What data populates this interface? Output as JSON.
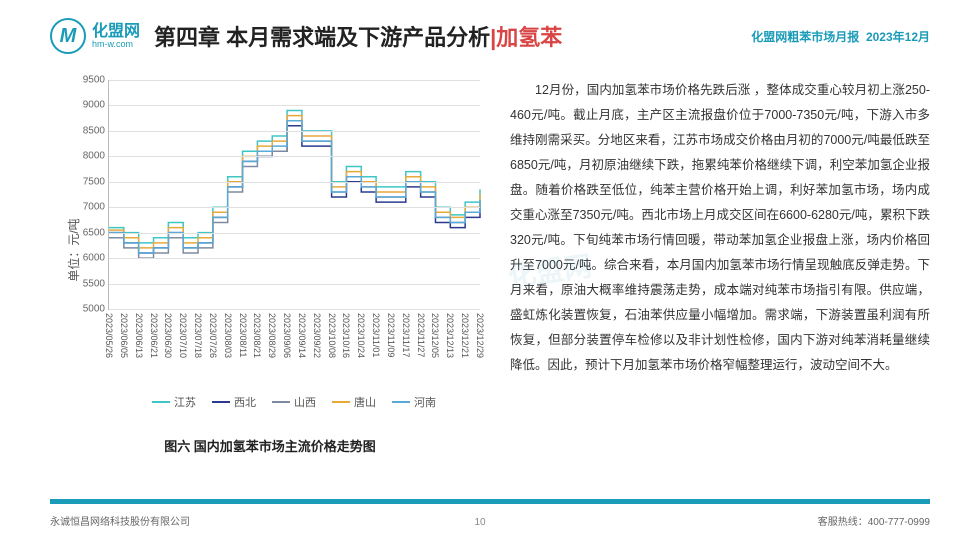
{
  "header": {
    "logo_letter": "M",
    "logo_cn": "化盟网",
    "logo_en": "hm-w.com",
    "title_pre": "第四章 本月需求端及下游产品分析",
    "title_hl": "|加氢苯",
    "top_right_a": "化盟网粗苯市场月报",
    "top_right_b": "2023年12月"
  },
  "chart": {
    "caption": "图六 国内加氢苯市场主流价格走势图",
    "yaxis_label": "单位：元/吨",
    "ymin": 5000,
    "ymax": 9500,
    "ytick_step": 500,
    "yticks": [
      5000,
      5500,
      6000,
      6500,
      7000,
      7500,
      8000,
      8500,
      9000,
      9500
    ],
    "xlabels": [
      "2023/05/26",
      "2023/06/05",
      "2023/06/13",
      "2023/06/21",
      "2023/06/30",
      "2023/07/10",
      "2023/07/18",
      "2023/07/26",
      "2023/08/03",
      "2023/08/11",
      "2023/08/21",
      "2023/08/29",
      "2023/09/06",
      "2023/09/14",
      "2023/09/22",
      "2023/10/08",
      "2023/10/16",
      "2023/10/24",
      "2023/11/01",
      "2023/11/09",
      "2023/11/17",
      "2023/11/27",
      "2023/12/05",
      "2023/12/13",
      "2023/12/21",
      "2023/12/29"
    ],
    "series": [
      {
        "name": "江苏",
        "color": "#3ec6c6",
        "values": [
          6600,
          6500,
          6300,
          6400,
          6700,
          6400,
          6500,
          7000,
          7600,
          8100,
          8300,
          8400,
          8900,
          8500,
          8500,
          7500,
          7800,
          7600,
          7400,
          7400,
          7700,
          7500,
          7000,
          6850,
          7100,
          7350
        ]
      },
      {
        "name": "西北",
        "color": "#2b3a8f",
        "values": [
          6500,
          6300,
          6100,
          6200,
          6500,
          6200,
          6300,
          6800,
          7400,
          7900,
          8000,
          8100,
          8600,
          8200,
          8200,
          7200,
          7500,
          7300,
          7100,
          7100,
          7400,
          7200,
          6700,
          6600,
          6800,
          7000
        ]
      },
      {
        "name": "山西",
        "color": "#7e8aa0",
        "values": [
          6400,
          6200,
          6000,
          6100,
          6400,
          6100,
          6200,
          6700,
          7300,
          7800,
          8000,
          8100,
          8700,
          8300,
          8300,
          7300,
          7600,
          7400,
          7200,
          7200,
          7500,
          7300,
          6800,
          6700,
          6900,
          7100
        ]
      },
      {
        "name": "唐山",
        "color": "#e6a93a",
        "values": [
          6550,
          6400,
          6200,
          6300,
          6600,
          6300,
          6400,
          6900,
          7500,
          8000,
          8200,
          8300,
          8800,
          8400,
          8400,
          7400,
          7700,
          7500,
          7300,
          7300,
          7600,
          7400,
          6900,
          6800,
          7000,
          7250
        ]
      },
      {
        "name": "河南",
        "color": "#5aa9d6",
        "values": [
          6500,
          6300,
          6100,
          6200,
          6500,
          6200,
          6300,
          6800,
          7400,
          7900,
          8100,
          8200,
          8700,
          8300,
          8300,
          7300,
          7600,
          7400,
          7200,
          7200,
          7500,
          7300,
          6800,
          6700,
          6900,
          7150
        ]
      }
    ],
    "grid_color": "#e0e0e0",
    "axis_color": "#bbbbbb",
    "background": "#ffffff",
    "line_width": 1.5
  },
  "body_text": "12月份，国内加氢苯市场价格先跌后涨 ，整体成交重心较月初上涨250-460元/吨。截止月底，主产区主流报盘价位于7000-7350元/吨，下游入市多维持刚需采买。分地区来看，江苏市场成交价格由月初的7000元/吨最低跌至6850元/吨，月初原油继续下跌，拖累纯苯价格继续下调，利空苯加氢企业报盘。随着价格跌至低位，纯苯主营价格开始上调，利好苯加氢市场，场内成交重心涨至7350元/吨。西北市场上月成交区间在6600-6280元/吨，累积下跌320元/吨。下旬纯苯市场行情回暖，带动苯加氢企业报盘上涨，场内价格回升至7000元/吨。综合来看，本月国内加氢苯市场行情呈现触底反弹走势。下月来看，原油大概率维持震荡走势，成本端对纯苯市场指引有限。供应端，盛虹炼化装置恢复，石油苯供应量小幅增加。需求端，下游装置虽利润有所恢复，但部分装置停车检修以及非计划性检修，国内下游对纯苯消耗量继续降低。因此，预计下月加氢苯市场价格窄幅整理运行，波动空间不大。",
  "watermark": "化盟网",
  "footer": {
    "left": "永诚恒昌网络科技股份有限公司",
    "page": "10",
    "right": "客服热线：400-777-0999"
  }
}
